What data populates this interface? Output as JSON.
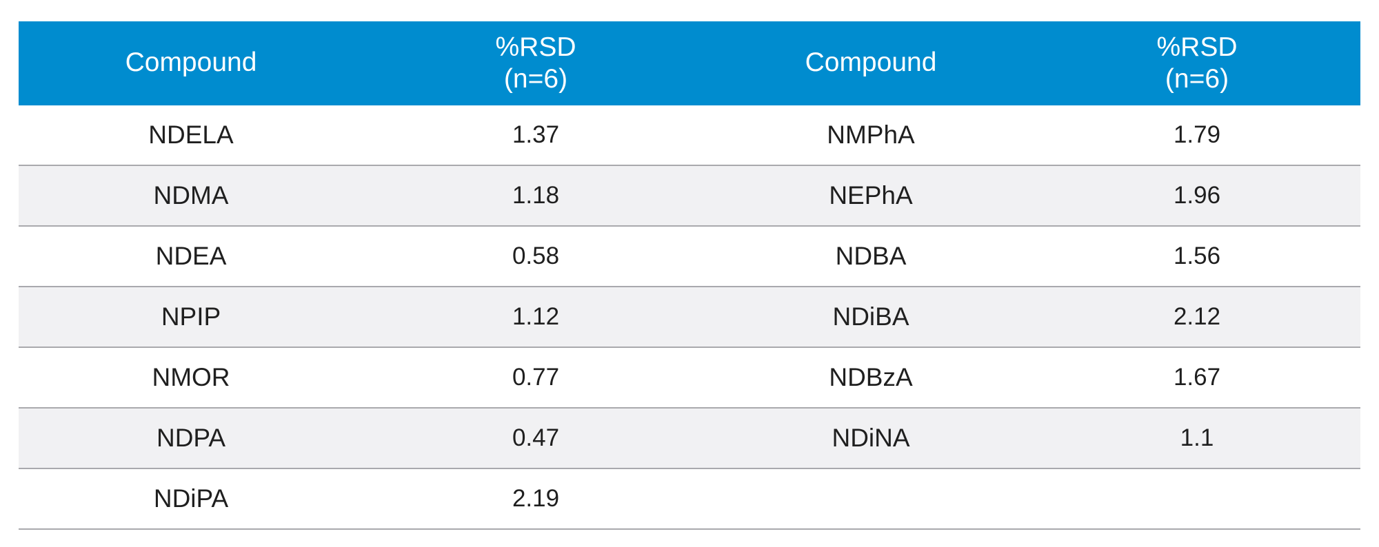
{
  "table": {
    "headers": {
      "col1": "Compound",
      "col2": "%RSD\n(n=6)",
      "col3": "Compound",
      "col4": "%RSD\n(n=6)"
    },
    "rows": [
      {
        "compound_left": "NDELA",
        "rsd_left": "1.37",
        "compound_right": "NMPhA",
        "rsd_right": "1.79"
      },
      {
        "compound_left": "NDMA",
        "rsd_left": "1.18",
        "compound_right": "NEPhA",
        "rsd_right": "1.96"
      },
      {
        "compound_left": "NDEA",
        "rsd_left": "0.58",
        "compound_right": "NDBA",
        "rsd_right": "1.56"
      },
      {
        "compound_left": "NPIP",
        "rsd_left": "1.12",
        "compound_right": "NDiBA",
        "rsd_right": "2.12"
      },
      {
        "compound_left": "NMOR",
        "rsd_left": "0.77",
        "compound_right": "NDBzA",
        "rsd_right": "1.67"
      },
      {
        "compound_left": "NDPA",
        "rsd_left": "0.47",
        "compound_right": "NDiNA",
        "rsd_right": "1.1"
      },
      {
        "compound_left": "NDiPA",
        "rsd_left": "2.19",
        "compound_right": "",
        "rsd_right": ""
      }
    ]
  },
  "colors": {
    "header_background": "#008ccf",
    "header_text": "#ffffff",
    "row_alt_background": "#f1f1f3",
    "row_border": "#a9a9ad",
    "body_text": "#1f1f1f"
  }
}
